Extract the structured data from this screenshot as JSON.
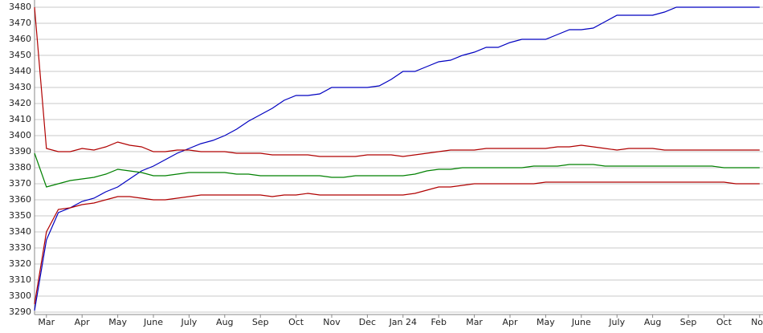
{
  "chart_data": {
    "type": "line",
    "categories": [
      null,
      "Mar",
      null,
      null,
      "Apr",
      null,
      null,
      "May",
      null,
      null,
      "June",
      null,
      null,
      "July",
      null,
      null,
      "Aug",
      null,
      null,
      "Sep",
      null,
      null,
      "Oct",
      null,
      null,
      "Nov",
      null,
      null,
      "Dec",
      null,
      null,
      "Jan 24",
      null,
      null,
      "Feb",
      null,
      null,
      "Mar",
      null,
      null,
      "Apr",
      null,
      null,
      "May",
      null,
      null,
      "June",
      null,
      null,
      "July",
      null,
      null,
      "Aug",
      null,
      null,
      "Sep",
      null,
      null,
      "Oct",
      null,
      null,
      "Nov"
    ],
    "series": [
      {
        "color": "#0000c0",
        "values": [
          3291,
          3335,
          3352,
          3355,
          3359,
          3361,
          3365,
          3368,
          3373,
          3378,
          3381,
          3385,
          3389,
          3392,
          3395,
          3397,
          3400,
          3404,
          3409,
          3413,
          3417,
          3422,
          3425,
          3425,
          3426,
          3430,
          3430,
          3430,
          3430,
          3431,
          3435,
          3440,
          3440,
          3443,
          3446,
          3447,
          3450,
          3452,
          3455,
          3455,
          3458,
          3460,
          3460,
          3460,
          3463,
          3466,
          3466,
          3467,
          3471,
          3475,
          3475,
          3475,
          3475,
          3477,
          3480,
          3480,
          3480,
          3480,
          3480,
          3480,
          3480,
          3480
        ]
      },
      {
        "color": "#b00000",
        "values": [
          3480,
          3392,
          3390,
          3390,
          3392,
          3391,
          3393,
          3396,
          3394,
          3393,
          3390,
          3390,
          3391,
          3391,
          3390,
          3390,
          3390,
          3389,
          3389,
          3389,
          3388,
          3388,
          3388,
          3388,
          3387,
          3387,
          3387,
          3387,
          3388,
          3388,
          3388,
          3387,
          3388,
          3389,
          3390,
          3391,
          3391,
          3391,
          3392,
          3392,
          3392,
          3392,
          3392,
          3392,
          3393,
          3393,
          3394,
          3393,
          3392,
          3391,
          3392,
          3392,
          3392,
          3391,
          3391,
          3391,
          3391,
          3391,
          3391,
          3391,
          3391,
          3391
        ]
      },
      {
        "color": "#008000",
        "values": [
          3389,
          3368,
          3370,
          3372,
          3373,
          3374,
          3376,
          3379,
          3378,
          3377,
          3375,
          3375,
          3376,
          3377,
          3377,
          3377,
          3377,
          3376,
          3376,
          3375,
          3375,
          3375,
          3375,
          3375,
          3375,
          3374,
          3374,
          3375,
          3375,
          3375,
          3375,
          3375,
          3376,
          3378,
          3379,
          3379,
          3380,
          3380,
          3380,
          3380,
          3380,
          3380,
          3381,
          3381,
          3381,
          3382,
          3382,
          3382,
          3381,
          3381,
          3381,
          3381,
          3381,
          3381,
          3381,
          3381,
          3381,
          3381,
          3380,
          3380,
          3380,
          3380
        ]
      },
      {
        "color": "#b00000",
        "values": [
          3295,
          3340,
          3354,
          3355,
          3357,
          3358,
          3360,
          3362,
          3362,
          3361,
          3360,
          3360,
          3361,
          3362,
          3363,
          3363,
          3363,
          3363,
          3363,
          3363,
          3362,
          3363,
          3363,
          3364,
          3363,
          3363,
          3363,
          3363,
          3363,
          3363,
          3363,
          3363,
          3364,
          3366,
          3368,
          3368,
          3369,
          3370,
          3370,
          3370,
          3370,
          3370,
          3370,
          3371,
          3371,
          3371,
          3371,
          3371,
          3371,
          3371,
          3371,
          3371,
          3371,
          3371,
          3371,
          3371,
          3371,
          3371,
          3371,
          3370,
          3370,
          3370
        ]
      }
    ],
    "ylim": [
      3290,
      3480
    ],
    "yticks": [
      3290,
      3300,
      3310,
      3320,
      3330,
      3340,
      3350,
      3360,
      3370,
      3380,
      3390,
      3400,
      3410,
      3420,
      3430,
      3440,
      3450,
      3460,
      3470,
      3480
    ],
    "grid": true
  }
}
